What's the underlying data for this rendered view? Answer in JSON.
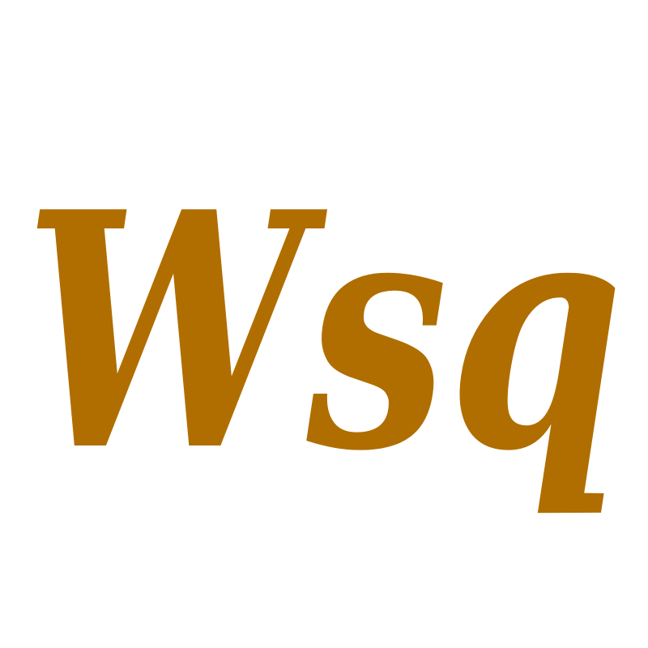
{
  "text": "Wsq",
  "color": "#b06e00"
}
